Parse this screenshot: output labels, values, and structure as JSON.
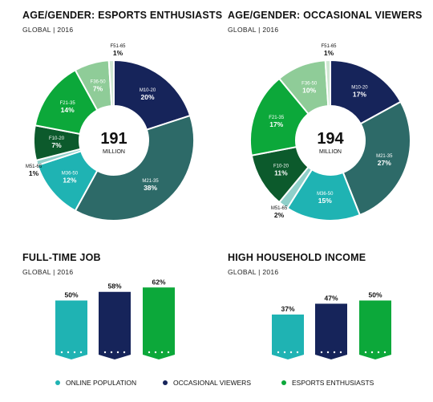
{
  "colors": {
    "M10-20": "#16245a",
    "M21-35": "#2d6a68",
    "M36-50": "#1fb3b3",
    "M51-65": "#8fd0ca",
    "F10-20": "#0c5a2c",
    "F21-35": "#0ca83a",
    "F36-50": "#8fcc98",
    "F51-65": "#cfe7d2",
    "online": "#1fb3b3",
    "occasional": "#16245a",
    "enthusiasts": "#0ca83a"
  },
  "donut1": {
    "title": "AGE/GENDER: ESPORTS ENTHUSIASTS",
    "subtitle": "GLOBAL | 2016",
    "center_value": "191",
    "center_unit": "MILLION"
  },
  "donut2": {
    "title": "AGE/GENDER: OCCASIONAL VIEWERS",
    "subtitle": "GLOBAL | 2016",
    "center_value": "194",
    "center_unit": "MILLION"
  },
  "bars1": {
    "title": "FULL-TIME JOB",
    "subtitle": "GLOBAL | 2016"
  },
  "bars2": {
    "title": "HIGH HOUSEHOLD INCOME",
    "subtitle": "GLOBAL | 2016"
  },
  "legend": [
    {
      "label": "ONLINE POPULATION",
      "color_key": "online"
    },
    {
      "label": "OCCASIONAL VIEWERS",
      "color_key": "occasional"
    },
    {
      "label": "ESPORTS ENTHUSIASTS",
      "color_key": "enthusiasts"
    }
  ],
  "chart_data": [
    {
      "type": "pie",
      "title": "AGE/GENDER: ESPORTS ENTHUSIASTS",
      "subtitle": "GLOBAL | 2016",
      "total": "191 MILLION",
      "categories": [
        "M10-20",
        "M21-35",
        "M36-50",
        "M51-65",
        "F10-20",
        "F21-35",
        "F36-50",
        "F51-65"
      ],
      "values": [
        20,
        38,
        12,
        1,
        7,
        14,
        7,
        1
      ],
      "value_labels": [
        "20%",
        "38%",
        "12%",
        "1%",
        "7%",
        "14%",
        "7%",
        "1%"
      ]
    },
    {
      "type": "pie",
      "title": "AGE/GENDER: OCCASIONAL VIEWERS",
      "subtitle": "GLOBAL | 2016",
      "total": "194 MILLION",
      "categories": [
        "M10-20",
        "M21-35",
        "M36-50",
        "M51-65",
        "F10-20",
        "F21-35",
        "F36-50",
        "F51-65"
      ],
      "values": [
        17,
        27,
        15,
        2,
        11,
        17,
        10,
        1
      ],
      "value_labels": [
        "17%",
        "27%",
        "15%",
        "2%",
        "11%",
        "17%",
        "10%",
        "1%"
      ]
    },
    {
      "type": "bar",
      "title": "FULL-TIME JOB",
      "subtitle": "GLOBAL | 2016",
      "categories": [
        "ONLINE POPULATION",
        "OCCASIONAL VIEWERS",
        "ESPORTS ENTHUSIASTS"
      ],
      "values": [
        50,
        58,
        62
      ],
      "value_labels": [
        "50%",
        "58%",
        "62%"
      ]
    },
    {
      "type": "bar",
      "title": "HIGH HOUSEHOLD INCOME",
      "subtitle": "GLOBAL | 2016",
      "categories": [
        "ONLINE POPULATION",
        "OCCASIONAL VIEWERS",
        "ESPORTS ENTHUSIASTS"
      ],
      "values": [
        37,
        47,
        50
      ],
      "value_labels": [
        "37%",
        "47%",
        "50%"
      ]
    }
  ]
}
